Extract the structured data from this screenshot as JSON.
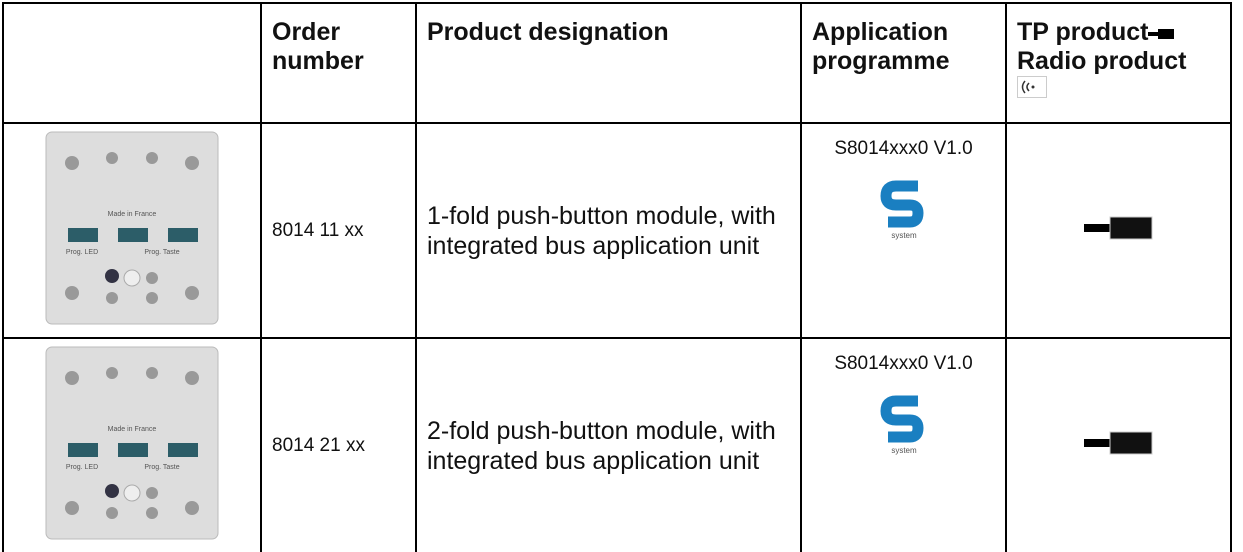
{
  "table": {
    "header": {
      "order_number": "Order number",
      "designation": "Product designation",
      "application": "Application programme",
      "tp": "TP product",
      "radio": "Radio product"
    },
    "rows": [
      {
        "image_labels": [
          "Made in France",
          "Prog. LED",
          "Prog. Taste"
        ],
        "order": "8014 11 xx",
        "designation": "1-fold push-button module, with integrated bus application unit",
        "application": "S8014xxx0 V1.0",
        "logo_text": "system"
      },
      {
        "image_labels": [
          "Made in France",
          "Prog. LED",
          "Prog. Taste"
        ],
        "order": "8014 21 xx",
        "designation": "2-fold push-button module, with integrated bus application unit",
        "application": "S8014xxx0 V1.0",
        "logo_text": "system"
      }
    ]
  }
}
